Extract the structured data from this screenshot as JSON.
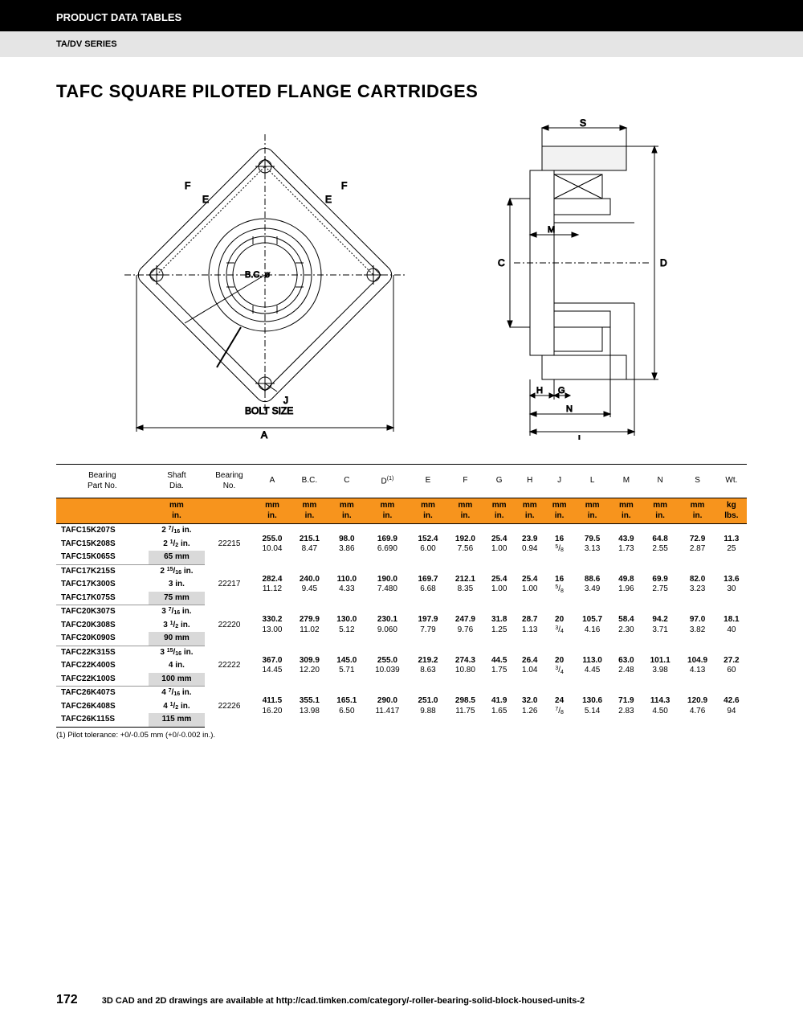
{
  "header": {
    "section": "PRODUCT DATA TABLES",
    "series": "TA/DV SERIES",
    "title": "TAFC SQUARE PILOTED FLANGE CARTRIDGES"
  },
  "diagram": {
    "labels": [
      "F",
      "E",
      "F",
      "E",
      "B.C. ø",
      "J",
      "BOLT SIZE",
      "A",
      "S",
      "C",
      "D",
      "M",
      "H",
      "G",
      "N",
      "L"
    ],
    "stroke": "#000"
  },
  "table": {
    "headers": [
      "Bearing\nPart No.",
      "Shaft\nDia.",
      "Bearing\nNo.",
      "A",
      "B.C.",
      "C",
      "D(1)",
      "E",
      "F",
      "G",
      "H",
      "J",
      "L",
      "M",
      "N",
      "S",
      "Wt."
    ],
    "unit_row": [
      "",
      "mm\nin.",
      "",
      "mm\nin.",
      "mm\nin.",
      "mm\nin.",
      "mm\nin.",
      "mm\nin.",
      "mm\nin.",
      "mm\nin.",
      "mm\nin.",
      "mm\nin.",
      "mm\nin.",
      "mm\nin.",
      "mm\nin.",
      "mm\nin.",
      "kg\nlbs."
    ],
    "groups": [
      {
        "bearing_no": "22215",
        "rows": [
          {
            "part": "TAFC15K207S",
            "shaft": "2 7/16 in."
          },
          {
            "part": "TAFC15K208S",
            "shaft": "2 1/2 in."
          },
          {
            "part": "TAFC15K065S",
            "shaft": "65 mm",
            "mm": true
          }
        ],
        "dims": [
          [
            "255.0",
            "215.1",
            "98.0",
            "169.9",
            "152.4",
            "192.0",
            "25.4",
            "23.9",
            "16",
            "79.5",
            "43.9",
            "64.8",
            "72.9",
            "11.3"
          ],
          [
            "10.04",
            "8.47",
            "3.86",
            "6.690",
            "6.00",
            "7.56",
            "1.00",
            "0.94",
            "5/8",
            "3.13",
            "1.73",
            "2.55",
            "2.87",
            "25"
          ]
        ]
      },
      {
        "bearing_no": "22217",
        "rows": [
          {
            "part": "TAFC17K215S",
            "shaft": "2 15/16 in."
          },
          {
            "part": "TAFC17K300S",
            "shaft": "3 in."
          },
          {
            "part": "TAFC17K075S",
            "shaft": "75 mm",
            "mm": true
          }
        ],
        "dims": [
          [
            "282.4",
            "240.0",
            "110.0",
            "190.0",
            "169.7",
            "212.1",
            "25.4",
            "25.4",
            "16",
            "88.6",
            "49.8",
            "69.9",
            "82.0",
            "13.6"
          ],
          [
            "11.12",
            "9.45",
            "4.33",
            "7.480",
            "6.68",
            "8.35",
            "1.00",
            "1.00",
            "5/8",
            "3.49",
            "1.96",
            "2.75",
            "3.23",
            "30"
          ]
        ]
      },
      {
        "bearing_no": "22220",
        "rows": [
          {
            "part": "TAFC20K307S",
            "shaft": "3 7/16 in."
          },
          {
            "part": "TAFC20K308S",
            "shaft": "3 1/2 in."
          },
          {
            "part": "TAFC20K090S",
            "shaft": "90 mm",
            "mm": true
          }
        ],
        "dims": [
          [
            "330.2",
            "279.9",
            "130.0",
            "230.1",
            "197.9",
            "247.9",
            "31.8",
            "28.7",
            "20",
            "105.7",
            "58.4",
            "94.2",
            "97.0",
            "18.1"
          ],
          [
            "13.00",
            "11.02",
            "5.12",
            "9.060",
            "7.79",
            "9.76",
            "1.25",
            "1.13",
            "3/4",
            "4.16",
            "2.30",
            "3.71",
            "3.82",
            "40"
          ]
        ]
      },
      {
        "bearing_no": "22222",
        "rows": [
          {
            "part": "TAFC22K315S",
            "shaft": "3 15/16 in."
          },
          {
            "part": "TAFC22K400S",
            "shaft": "4 in."
          },
          {
            "part": "TAFC22K100S",
            "shaft": "100 mm",
            "mm": true
          }
        ],
        "dims": [
          [
            "367.0",
            "309.9",
            "145.0",
            "255.0",
            "219.2",
            "274.3",
            "44.5",
            "26.4",
            "20",
            "113.0",
            "63.0",
            "101.1",
            "104.9",
            "27.2"
          ],
          [
            "14.45",
            "12.20",
            "5.71",
            "10.039",
            "8.63",
            "10.80",
            "1.75",
            "1.04",
            "3/4",
            "4.45",
            "2.48",
            "3.98",
            "4.13",
            "60"
          ]
        ]
      },
      {
        "bearing_no": "22226",
        "rows": [
          {
            "part": "TAFC26K407S",
            "shaft": "4 7/16 in."
          },
          {
            "part": "TAFC26K408S",
            "shaft": "4 1/2 in."
          },
          {
            "part": "TAFC26K115S",
            "shaft": "115 mm",
            "mm": true
          }
        ],
        "dims": [
          [
            "411.5",
            "355.1",
            "165.1",
            "290.0",
            "251.0",
            "298.5",
            "41.9",
            "32.0",
            "24",
            "130.6",
            "71.9",
            "114.3",
            "120.9",
            "42.6"
          ],
          [
            "16.20",
            "13.98",
            "6.50",
            "11.417",
            "9.88",
            "11.75",
            "1.65",
            "1.26",
            "7/8",
            "5.14",
            "2.83",
            "4.50",
            "4.76",
            "94"
          ]
        ]
      }
    ]
  },
  "footnote": "(1) Pilot tolerance: +0/-0.05 mm (+0/-0.002 in.).",
  "footer": {
    "page": "172",
    "text": "3D CAD and 2D drawings are available at http://cad.timken.com/category/-roller-bearing-solid-block-housed-units-2"
  }
}
